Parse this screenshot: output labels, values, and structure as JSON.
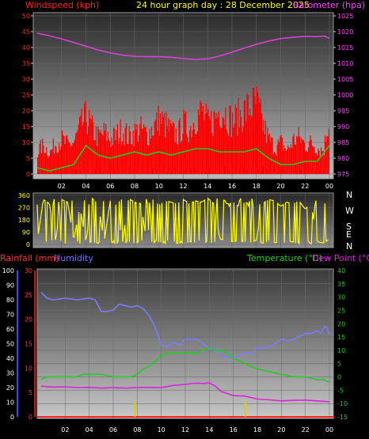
{
  "header": {
    "left_label": "Windspeed (kph)",
    "center_label": "24 hour graph day : 28 December 2025",
    "right_label": "Barometer (hpa)"
  },
  "middle": {
    "compass": [
      "N",
      "W",
      "S",
      "E",
      "N"
    ]
  },
  "bottom_header": {
    "rain_label": "Rainfall (mm)",
    "humidity_label": "Humidity",
    "temp_label": "Temperature (°C)",
    "dew_label": "Dew Point (°C)"
  },
  "colors": {
    "wind_label": "#ff2020",
    "center_label": "#ffff00",
    "baro_label": "#ff40ff",
    "baro_line": "#e040e0",
    "gust_bars": "#ff0000",
    "avg_wind": "#22cc22",
    "calm_white": "#ffffff",
    "direction": "#ffff00",
    "rain_axis": "#ff3030",
    "humidity_axis": "#7070ff",
    "temperature": "#22cc22",
    "dew_point": "#dd22dd",
    "rain_marks": "#ddcc00"
  },
  "chart_data": [
    {
      "type": "line",
      "title": "24 hour graph day : 28 December 2025",
      "x_ticks": [
        "02",
        "04",
        "06",
        "08",
        "10",
        "12",
        "14",
        "16",
        "18",
        "20",
        "22",
        "00"
      ],
      "x_hours": [
        0,
        24
      ],
      "y_left_label": "Windspeed (kph)",
      "y_left_ticks": [
        0,
        5,
        10,
        15,
        20,
        25,
        30,
        35,
        40,
        45,
        50
      ],
      "y_left_range": [
        0,
        50
      ],
      "y_right_label": "Barometer (hpa)",
      "y_right_ticks": [
        975,
        980,
        985,
        990,
        995,
        1000,
        1005,
        1010,
        1015,
        1020,
        1025
      ],
      "y_right_range": [
        975,
        1025
      ],
      "series": [
        {
          "name": "Barometer (hpa)",
          "axis": "right",
          "x": [
            0.0,
            1.0,
            2.0,
            3.0,
            4.0,
            5.0,
            6.0,
            7.0,
            8.0,
            9.0,
            10.0,
            11.0,
            12.0,
            13.0,
            14.0,
            15.0,
            16.0,
            17.0,
            18.0,
            19.0,
            20.0,
            21.0,
            22.0,
            23.0,
            23.6,
            24.0
          ],
          "values": [
            1019.5,
            1018.7,
            1017.7,
            1016.6,
            1015.4,
            1014.2,
            1013.3,
            1012.6,
            1012.2,
            1012.1,
            1012.1,
            1011.9,
            1011.5,
            1011.2,
            1011.4,
            1012.3,
            1013.5,
            1014.8,
            1016.0,
            1017.0,
            1017.8,
            1018.2,
            1018.5,
            1018.4,
            1018.6,
            1017.9
          ]
        },
        {
          "name": "Gust",
          "axis": "left",
          "x": [
            0.0,
            0.5,
            1.0,
            1.5,
            2.0,
            2.5,
            3.0,
            3.5,
            4.0,
            4.5,
            5.0,
            5.5,
            6.0,
            6.5,
            7.0,
            7.5,
            8.0,
            8.5,
            9.0,
            9.5,
            10.0,
            10.5,
            11.0,
            11.5,
            12.0,
            12.5,
            13.0,
            13.5,
            14.0,
            14.5,
            15.0,
            15.5,
            16.0,
            16.5,
            17.0,
            17.5,
            18.0,
            18.5,
            19.0,
            19.5,
            20.0,
            20.5,
            21.0,
            21.5,
            22.0,
            22.5,
            23.0,
            23.5,
            24.0
          ],
          "values": [
            9,
            11,
            8,
            12,
            13,
            11,
            12,
            18,
            22,
            17,
            14,
            16,
            13,
            15,
            17,
            14,
            16,
            17,
            15,
            18,
            21,
            19,
            16,
            15,
            19,
            17,
            22,
            24,
            19,
            21,
            25,
            23,
            20,
            22,
            24,
            26,
            27,
            19,
            13,
            10,
            12,
            9,
            13,
            14,
            11,
            12,
            10,
            9,
            24
          ]
        },
        {
          "name": "Average windspeed",
          "axis": "left",
          "x": [
            0.0,
            1.0,
            2.0,
            3.0,
            4.0,
            5.0,
            6.0,
            7.0,
            8.0,
            9.0,
            10.0,
            11.0,
            12.0,
            13.0,
            14.0,
            15.0,
            16.0,
            17.0,
            18.0,
            19.0,
            20.0,
            21.0,
            22.0,
            23.0,
            24.0
          ],
          "values": [
            2.0,
            1.0,
            2.0,
            3.0,
            9.0,
            6.0,
            5.0,
            6.0,
            7.0,
            6.0,
            7.0,
            6.0,
            7.0,
            8.0,
            8.0,
            7.0,
            7.0,
            7.0,
            8.0,
            5.0,
            3.0,
            3.0,
            4.0,
            4.0,
            9.0
          ]
        }
      ]
    },
    {
      "type": "scatter",
      "title": "",
      "x_ticks": [
        "02",
        "04",
        "06",
        "08",
        "10",
        "12",
        "14",
        "16",
        "18",
        "20",
        "22",
        "00"
      ],
      "y_ticks": [
        0,
        90,
        180,
        270,
        360
      ],
      "y_range": [
        0,
        360
      ],
      "compass_labels": [
        "N",
        "W",
        "S",
        "E",
        "N"
      ],
      "series": [
        {
          "name": "Wind direction",
          "x": [
            0.0,
            0.5,
            1.0,
            1.5,
            2.0,
            2.5,
            3.0,
            3.5,
            4.0,
            4.5,
            5.0,
            5.5,
            6.0,
            6.5,
            7.0,
            7.5,
            8.0,
            8.5,
            9.0,
            9.5,
            10.0,
            10.5,
            11.0,
            11.5,
            12.0,
            12.5,
            13.0,
            13.5,
            14.0,
            14.5,
            15.0,
            15.5,
            16.0,
            16.5,
            17.0,
            17.5,
            18.0,
            18.5,
            19.0,
            19.5,
            20.0,
            20.5,
            21.0,
            21.5,
            22.0,
            22.5,
            23.0,
            23.5,
            24.0
          ],
          "values": [
            20,
            330,
            300,
            20,
            330,
            310,
            30,
            280,
            15,
            340,
            300,
            20,
            320,
            290,
            10,
            340,
            310,
            300,
            20,
            330,
            290,
            320,
            310,
            300,
            330,
            300,
            320,
            310,
            340,
            300,
            40,
            30,
            20,
            25,
            20,
            15,
            30,
            300,
            330,
            320,
            280,
            310,
            300,
            320,
            260,
            300,
            20,
            10,
            40
          ]
        }
      ]
    },
    {
      "type": "line",
      "title": "",
      "x_ticks": [
        "02",
        "04",
        "06",
        "08",
        "10",
        "12",
        "14",
        "16",
        "18",
        "20",
        "22",
        "00"
      ],
      "x_hours": [
        0,
        24
      ],
      "y_far_left_label": "Humidity",
      "y_far_left_ticks": [
        0,
        10,
        20,
        30,
        40,
        50,
        60,
        70,
        80,
        90,
        100
      ],
      "y_far_left_range": [
        0,
        100
      ],
      "y_left_label": "Rainfall (mm)",
      "y_left_ticks": [
        0,
        5,
        10,
        15,
        20,
        25,
        30
      ],
      "y_left_range": [
        0,
        30
      ],
      "y_right_label": "Temperature (°C)",
      "y_right_label_2": "Dew Point (°C)",
      "y_right_ticks": [
        -15,
        -10,
        -5,
        0,
        5,
        10,
        15,
        20,
        25,
        30,
        35,
        40
      ],
      "y_right_range": [
        -15,
        40
      ],
      "series": [
        {
          "name": "Humidity",
          "axis": "far_left",
          "x": [
            0.0,
            0.5,
            1.0,
            2.0,
            3.0,
            4.0,
            4.5,
            5.0,
            5.5,
            6.0,
            6.5,
            7.0,
            7.5,
            8.0,
            8.5,
            9.0,
            9.5,
            10.0,
            10.5,
            11.0,
            11.5,
            12.0,
            12.5,
            13.0,
            13.5,
            14.0,
            14.5,
            15.0,
            15.5,
            16.0,
            16.5,
            17.0,
            17.5,
            18.0,
            18.5,
            19.0,
            19.5,
            20.0,
            20.5,
            21.0,
            21.5,
            22.0,
            22.5,
            23.0,
            23.3,
            23.6,
            23.8,
            24.0
          ],
          "values": [
            85,
            81,
            80,
            81,
            80,
            81,
            80,
            72,
            72,
            73,
            77,
            76,
            75,
            76,
            74,
            69,
            61,
            49,
            48,
            51,
            49,
            53,
            53,
            53,
            50,
            46,
            47,
            42,
            41,
            40,
            42,
            44,
            43,
            47,
            47,
            48,
            50,
            53,
            52,
            53,
            55,
            57,
            57,
            59,
            57,
            62,
            61,
            56
          ]
        },
        {
          "name": "Temperature (°C)",
          "axis": "right",
          "x": [
            0.0,
            0.5,
            1.0,
            2.0,
            3.0,
            3.5,
            4.0,
            5.0,
            6.0,
            7.0,
            7.5,
            8.0,
            8.5,
            9.0,
            9.5,
            10.0,
            10.5,
            11.0,
            12.0,
            13.0,
            13.5,
            14.0,
            14.5,
            15.0,
            15.5,
            16.0,
            17.0,
            18.0,
            19.0,
            20.0,
            21.0,
            22.0,
            23.0,
            23.5,
            24.0
          ],
          "values": [
            -1.0,
            0.0,
            0.0,
            0.0,
            0.0,
            1.0,
            1.0,
            1.0,
            0.0,
            0.0,
            0.0,
            1.0,
            3.0,
            4.0,
            6.0,
            8.0,
            9.0,
            9.0,
            9.0,
            9.0,
            10.0,
            11.0,
            10.0,
            10.0,
            9.0,
            7.0,
            5.0,
            3.0,
            2.0,
            1.0,
            0.0,
            0.0,
            -1.0,
            -1.0,
            -2.0
          ]
        },
        {
          "name": "Dew Point (°C)",
          "axis": "right",
          "x": [
            0.0,
            1.0,
            2.0,
            3.0,
            4.0,
            5.0,
            6.0,
            7.0,
            8.0,
            9.0,
            10.0,
            11.0,
            12.0,
            12.5,
            13.0,
            13.5,
            14.0,
            14.5,
            15.0,
            16.0,
            17.0,
            18.0,
            19.0,
            20.0,
            21.0,
            22.0,
            23.0,
            24.0
          ],
          "values": [
            -3.5,
            -3.8,
            -3.7,
            -4.0,
            -3.9,
            -4.2,
            -4.0,
            -4.2,
            -4.0,
            -3.9,
            -4.0,
            -3.2,
            -2.8,
            -2.5,
            -2.3,
            -2.5,
            -2.2,
            -3.5,
            -5.5,
            -7.0,
            -7.2,
            -8.3,
            -8.6,
            -9.0,
            -8.8,
            -8.7,
            -9.0,
            -9.3
          ]
        },
        {
          "name": "Rainfall (mm)",
          "axis": "left",
          "x": [
            7.8,
            17.0
          ],
          "values": [
            3.0,
            3.0
          ]
        }
      ]
    }
  ]
}
